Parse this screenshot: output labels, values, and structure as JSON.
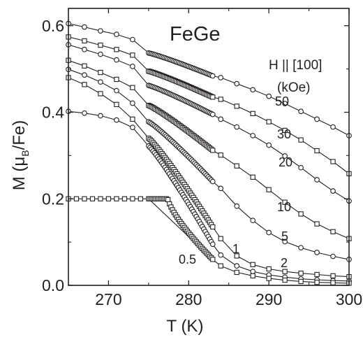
{
  "chart_data": {
    "type": "line",
    "title": "FeGe",
    "xlabel": "T (K)",
    "ylabel": "M (μB/Fe)",
    "ylabel_parts": {
      "pre": "M (",
      "mu": "μ",
      "sub": "B",
      "post": "/Fe)"
    },
    "xlim": [
      265,
      300
    ],
    "ylim": [
      0,
      0.64
    ],
    "xticks": [
      270,
      280,
      290,
      300
    ],
    "xtick_labels": [
      "270",
      "280",
      "290",
      "300"
    ],
    "yticks": [
      0,
      0.2,
      0.4,
      0.6
    ],
    "ytick_labels": [
      "0.0",
      "0.2",
      "0.4",
      "0.6"
    ],
    "grid": false,
    "legend_title": "H || [100]",
    "legend_units": "(kOe)",
    "colors": {
      "ink": "#231f20",
      "background": "#ffffff"
    },
    "series": [
      {
        "name": "50",
        "marker": "circle",
        "points": [
          [
            265,
            0.605
          ],
          [
            267,
            0.597
          ],
          [
            269,
            0.588
          ],
          [
            271,
            0.58
          ],
          [
            273,
            0.568
          ]
        ],
        "dense": {
          "x0": 275.0,
          "x1": 283.0,
          "y0": 0.537,
          "y1": 0.484,
          "n": 44
        },
        "tail": [
          [
            284,
            0.48
          ],
          [
            286,
            0.466
          ],
          [
            288,
            0.452
          ],
          [
            290,
            0.437
          ],
          [
            292,
            0.42
          ],
          [
            294,
            0.402
          ],
          [
            296,
            0.384
          ],
          [
            298,
            0.366
          ],
          [
            300,
            0.346
          ]
        ]
      },
      {
        "name": "30",
        "marker": "square",
        "points": [
          [
            265,
            0.574
          ],
          [
            267,
            0.565
          ],
          [
            269,
            0.555
          ],
          [
            271,
            0.545
          ],
          [
            273,
            0.532
          ]
        ],
        "dense": {
          "x0": 275.0,
          "x1": 283.0,
          "y0": 0.495,
          "y1": 0.435,
          "n": 44
        },
        "tail": [
          [
            284,
            0.43
          ],
          [
            286,
            0.414
          ],
          [
            288,
            0.397
          ],
          [
            290,
            0.378
          ],
          [
            292,
            0.358
          ],
          [
            294,
            0.336
          ],
          [
            296,
            0.311
          ],
          [
            298,
            0.286
          ],
          [
            300,
            0.258
          ]
        ]
      },
      {
        "name": "20",
        "marker": "circle",
        "points": [
          [
            265,
            0.556
          ],
          [
            267,
            0.545
          ],
          [
            269,
            0.534
          ],
          [
            271,
            0.521
          ],
          [
            273,
            0.506
          ]
        ],
        "dense": {
          "x0": 275.0,
          "x1": 283.0,
          "y0": 0.462,
          "y1": 0.395,
          "n": 44
        },
        "tail": [
          [
            284,
            0.384
          ],
          [
            286,
            0.366
          ],
          [
            288,
            0.346
          ],
          [
            290,
            0.324
          ],
          [
            292,
            0.299
          ],
          [
            294,
            0.272
          ],
          [
            296,
            0.244
          ],
          [
            298,
            0.218
          ],
          [
            300,
            0.195
          ]
        ]
      },
      {
        "name": "10",
        "marker": "square",
        "points": [
          [
            265,
            0.52
          ],
          [
            267,
            0.507
          ],
          [
            269,
            0.492
          ],
          [
            271,
            0.476
          ],
          [
            273,
            0.457
          ]
        ],
        "dense": {
          "x0": 275.0,
          "x1": 283.0,
          "y0": 0.416,
          "y1": 0.312,
          "n": 44
        },
        "tail": [
          [
            284,
            0.301
          ],
          [
            286,
            0.276
          ],
          [
            288,
            0.25
          ],
          [
            290,
            0.221
          ],
          [
            292,
            0.192
          ],
          [
            294,
            0.165
          ],
          [
            296,
            0.142
          ],
          [
            298,
            0.124
          ],
          [
            300,
            0.108
          ]
        ]
      },
      {
        "name": "5",
        "marker": "circle",
        "points": [
          [
            265,
            0.499
          ],
          [
            267,
            0.486
          ],
          [
            269,
            0.47
          ],
          [
            271,
            0.45
          ],
          [
            273,
            0.421
          ]
        ],
        "dense": {
          "x0": 275.0,
          "x1": 283.0,
          "y0": 0.378,
          "y1": 0.24,
          "n": 44
        },
        "tail": [
          [
            284,
            0.224
          ],
          [
            286,
            0.183
          ],
          [
            288,
            0.15
          ],
          [
            290,
            0.122
          ],
          [
            292,
            0.101
          ],
          [
            294,
            0.087
          ],
          [
            296,
            0.076
          ],
          [
            298,
            0.067
          ],
          [
            300,
            0.06
          ]
        ]
      },
      {
        "name": "2",
        "marker": "square",
        "points": [
          [
            265,
            0.48
          ],
          [
            267,
            0.464
          ],
          [
            269,
            0.443
          ],
          [
            271,
            0.418
          ],
          [
            273,
            0.384
          ]
        ],
        "dense": {
          "x0": 275.0,
          "x1": 283.0,
          "y0": 0.34,
          "y1": 0.135,
          "n": 44
        },
        "tail": [
          [
            284,
            0.108
          ],
          [
            286,
            0.068
          ],
          [
            288,
            0.048
          ],
          [
            290,
            0.038
          ],
          [
            292,
            0.032
          ],
          [
            294,
            0.028
          ],
          [
            296,
            0.025
          ],
          [
            298,
            0.022
          ],
          [
            300,
            0.02
          ]
        ]
      },
      {
        "name": "1",
        "marker": "circle",
        "points": [
          [
            265,
            0.402
          ],
          [
            267,
            0.398
          ],
          [
            269,
            0.392
          ],
          [
            271,
            0.382
          ],
          [
            273,
            0.365
          ]
        ],
        "dense": {
          "x0": 275.0,
          "x1": 283.0,
          "y0": 0.322,
          "y1": 0.095,
          "n": 44
        },
        "tail": [
          [
            284,
            0.07
          ],
          [
            286,
            0.045
          ],
          [
            288,
            0.032
          ],
          [
            290,
            0.024
          ],
          [
            292,
            0.019
          ],
          [
            294,
            0.015
          ],
          [
            296,
            0.013
          ],
          [
            298,
            0.011
          ],
          [
            300,
            0.01
          ]
        ]
      },
      {
        "name": "0.5",
        "marker": "square",
        "points": [
          [
            265,
            0.2
          ],
          [
            266,
            0.2
          ],
          [
            267,
            0.2
          ],
          [
            268,
            0.2
          ],
          [
            269,
            0.2
          ],
          [
            270,
            0.2
          ],
          [
            271,
            0.2
          ],
          [
            272,
            0.2
          ],
          [
            273,
            0.2
          ],
          [
            274,
            0.2
          ]
        ],
        "dense": {
          "x0": 275.0,
          "x1": 283.0,
          "n": 44,
          "kink": 277.4,
          "y_flat": 0.2,
          "y_end": 0.06
        },
        "tail": [
          [
            284,
            0.045
          ],
          [
            286,
            0.03
          ],
          [
            288,
            0.022
          ],
          [
            290,
            0.016
          ],
          [
            292,
            0.012
          ],
          [
            294,
            0.009
          ],
          [
            296,
            0.007
          ],
          [
            298,
            0.006
          ],
          [
            300,
            0.005
          ]
        ]
      }
    ],
    "labels": [
      "50",
      "30",
      "20",
      "10",
      "5",
      "2",
      "1",
      "0.5"
    ]
  }
}
